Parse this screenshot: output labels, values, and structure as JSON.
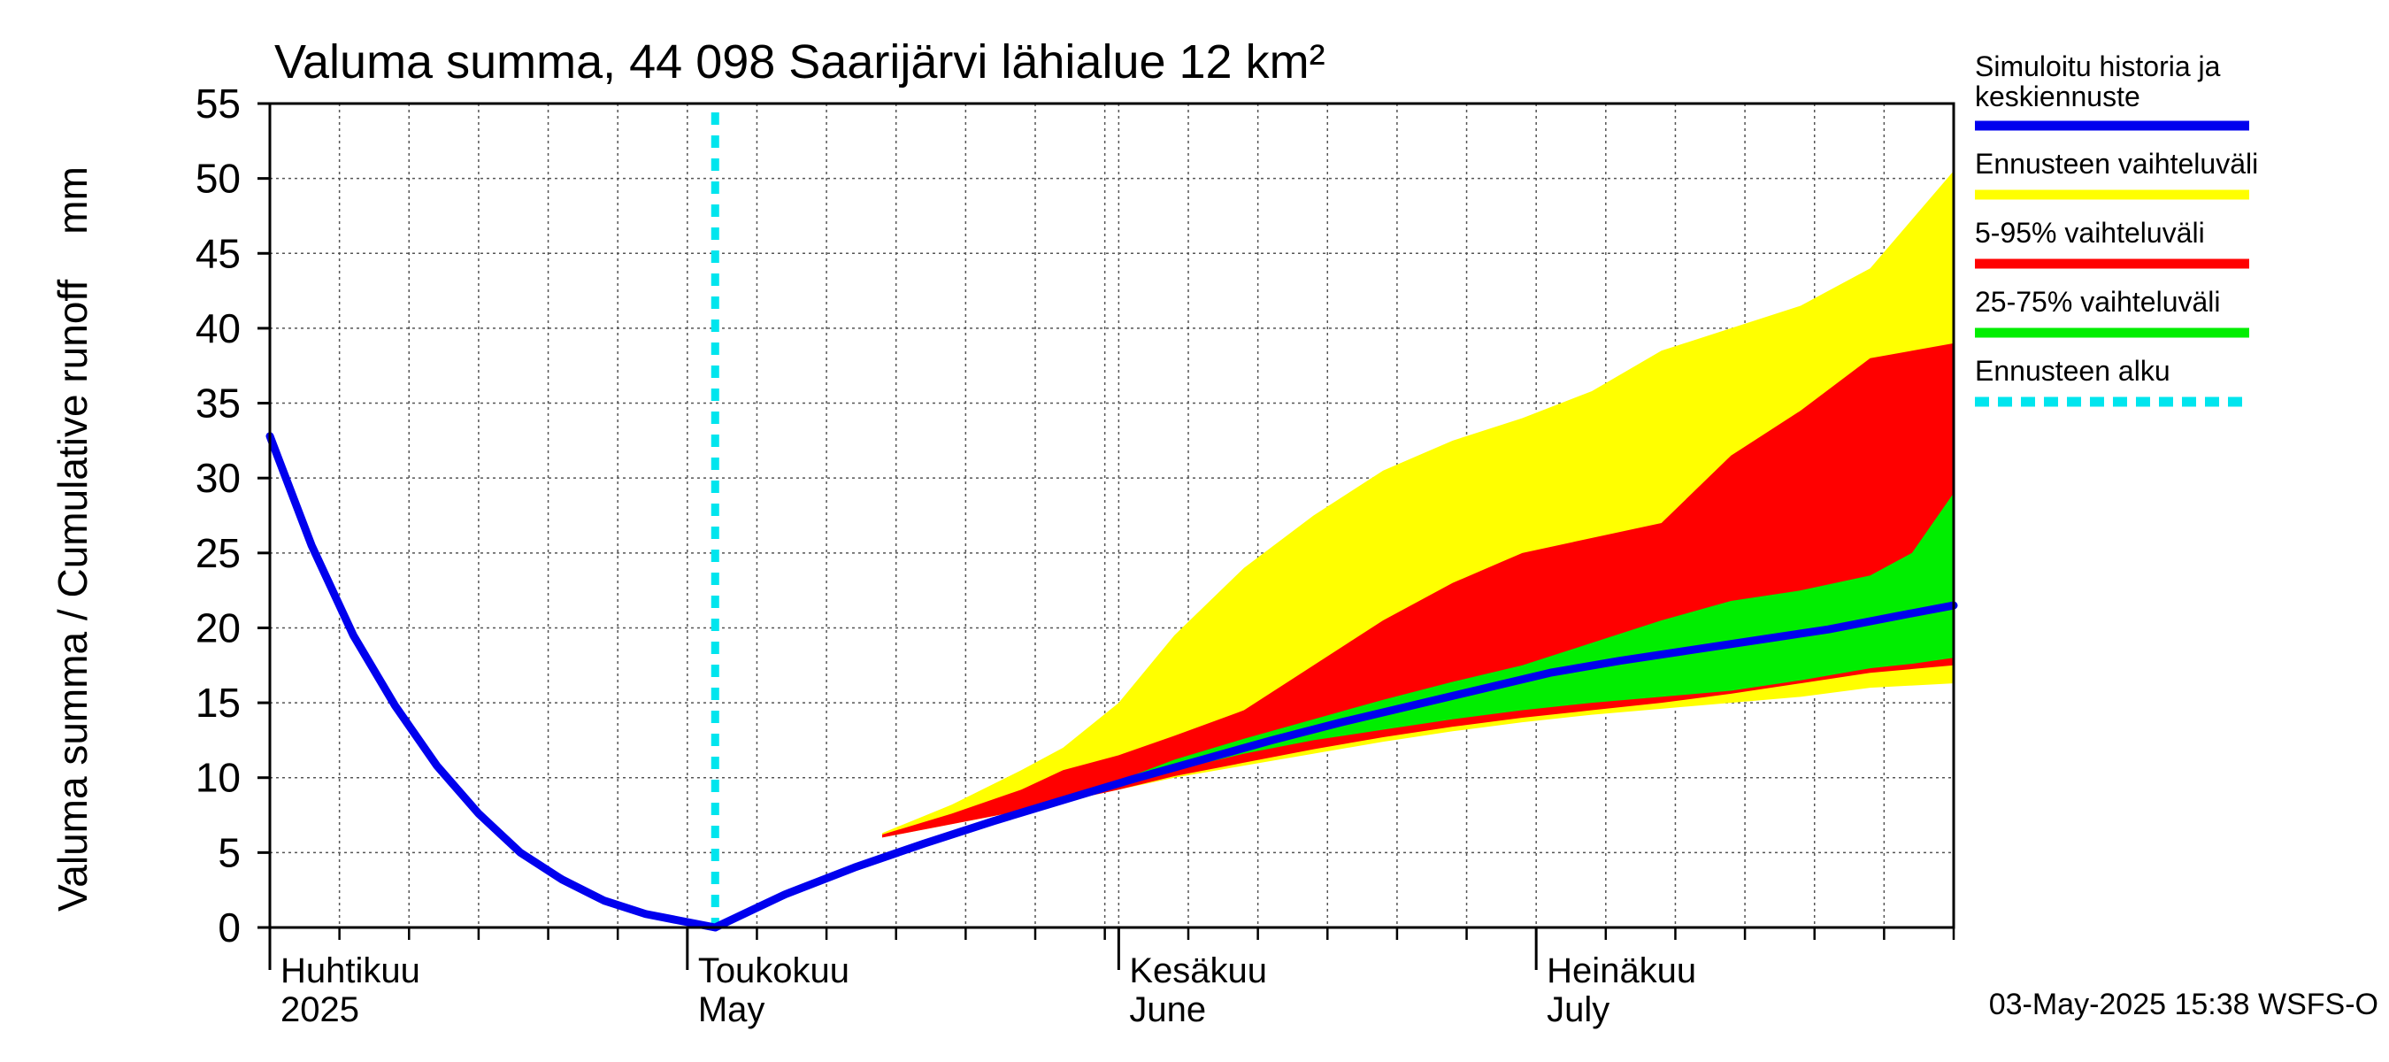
{
  "chart_data": {
    "type": "area",
    "title": "Valuma summa, 44 098 Saarijärvi lähialue 12 km²",
    "ylabel": "Valuma summa / Cumulative runoff    mm",
    "ylim": [
      0,
      55
    ],
    "yticks": [
      0,
      5,
      10,
      15,
      20,
      25,
      30,
      35,
      40,
      45,
      50,
      55
    ],
    "xlim": [
      "2025-04-01",
      "2025-07-31"
    ],
    "grid": true,
    "legend_position": "right",
    "month_labels": [
      {
        "fi": "Huhtikuu",
        "en": "2025",
        "date": "2025-04-01"
      },
      {
        "fi": "Toukokuu",
        "en": "May",
        "date": "2025-05-01"
      },
      {
        "fi": "Kesäkuu",
        "en": "June",
        "date": "2025-06-01"
      },
      {
        "fi": "Heinäkuu",
        "en": "July",
        "date": "2025-07-01"
      }
    ],
    "forecast_start": "2025-05-03",
    "legend": [
      {
        "label": "Simuloitu historia ja keskiennuste",
        "color": "#0000ee",
        "style": "solid"
      },
      {
        "label": "Ennusteen vaihteluväli",
        "color": "#ffff00",
        "style": "solid"
      },
      {
        "label": "5-95% vaihteluväli",
        "color": "#ff0000",
        "style": "solid"
      },
      {
        "label": "25-75% vaihteluväli",
        "color": "#00ee00",
        "style": "solid"
      },
      {
        "label": "Ennusteen alku",
        "color": "#00e5ee",
        "style": "dashed"
      }
    ],
    "series": [
      {
        "name": "Ennusteen vaihteluväli",
        "kind": "band",
        "color": "#ffff00",
        "x": [
          "2025-05-15",
          "2025-05-20",
          "2025-05-25",
          "2025-05-28",
          "2025-06-01",
          "2025-06-05",
          "2025-06-10",
          "2025-06-15",
          "2025-06-20",
          "2025-06-25",
          "2025-06-30",
          "2025-07-05",
          "2025-07-10",
          "2025-07-15",
          "2025-07-20",
          "2025-07-25",
          "2025-07-31"
        ],
        "low": [
          6.0,
          6.9,
          7.8,
          8.4,
          9.2,
          10.0,
          10.8,
          11.6,
          12.4,
          13.1,
          13.7,
          14.2,
          14.6,
          15.0,
          15.4,
          16.0,
          16.3
        ],
        "high": [
          6.3,
          8.2,
          10.5,
          12.0,
          15.0,
          19.5,
          24.0,
          27.5,
          30.5,
          32.5,
          34.0,
          35.8,
          38.5,
          40.0,
          41.5,
          44.0,
          50.5
        ]
      },
      {
        "name": "5-95% vaihteluväli",
        "kind": "band",
        "color": "#ff0000",
        "x": [
          "2025-05-15",
          "2025-05-20",
          "2025-05-25",
          "2025-05-28",
          "2025-06-01",
          "2025-06-05",
          "2025-06-10",
          "2025-06-15",
          "2025-06-20",
          "2025-06-25",
          "2025-06-30",
          "2025-07-05",
          "2025-07-10",
          "2025-07-15",
          "2025-07-20",
          "2025-07-25",
          "2025-07-31"
        ],
        "low": [
          6.0,
          6.9,
          7.8,
          8.4,
          9.2,
          10.1,
          11.0,
          11.9,
          12.7,
          13.4,
          14.0,
          14.5,
          15.0,
          15.6,
          16.3,
          17.0,
          17.5
        ],
        "high": [
          6.2,
          7.6,
          9.2,
          10.5,
          11.5,
          12.8,
          14.5,
          17.5,
          20.5,
          23.0,
          25.0,
          26.0,
          27.0,
          31.5,
          34.5,
          38.0,
          39.0
        ]
      },
      {
        "name": "25-75% vaihteluväli",
        "kind": "band",
        "color": "#00ee00",
        "x": [
          "2025-06-01",
          "2025-06-05",
          "2025-06-10",
          "2025-06-15",
          "2025-06-20",
          "2025-06-25",
          "2025-06-30",
          "2025-07-05",
          "2025-07-10",
          "2025-07-15",
          "2025-07-20",
          "2025-07-25",
          "2025-07-28",
          "2025-07-31"
        ],
        "low": [
          9.5,
          10.5,
          11.6,
          12.5,
          13.2,
          13.9,
          14.5,
          15.0,
          15.4,
          15.8,
          16.5,
          17.3,
          17.6,
          18.0
        ],
        "high": [
          9.8,
          11.2,
          12.6,
          13.9,
          15.2,
          16.4,
          17.5,
          19.0,
          20.5,
          21.8,
          22.5,
          23.5,
          25.0,
          29.0
        ]
      },
      {
        "name": "Simuloitu historia ja keskiennuste",
        "kind": "line",
        "color": "#0000ee",
        "x": [
          "2025-04-01",
          "2025-04-04",
          "2025-04-07",
          "2025-04-10",
          "2025-04-13",
          "2025-04-16",
          "2025-04-19",
          "2025-04-22",
          "2025-04-25",
          "2025-04-28",
          "2025-05-03",
          "2025-05-08",
          "2025-05-13",
          "2025-05-18",
          "2025-05-23",
          "2025-05-28",
          "2025-06-02",
          "2025-06-07",
          "2025-06-12",
          "2025-06-17",
          "2025-06-22",
          "2025-06-27",
          "2025-07-02",
          "2025-07-07",
          "2025-07-12",
          "2025-07-17",
          "2025-07-22",
          "2025-07-27",
          "2025-07-31"
        ],
        "y": [
          32.8,
          25.5,
          19.5,
          14.8,
          10.8,
          7.6,
          5.0,
          3.2,
          1.8,
          0.9,
          0.0,
          2.2,
          4.0,
          5.6,
          7.1,
          8.5,
          9.9,
          11.2,
          12.5,
          13.7,
          14.8,
          15.9,
          17.0,
          17.8,
          18.5,
          19.2,
          19.9,
          20.8,
          21.5
        ]
      }
    ]
  },
  "timestamp": "03-May-2025 15:38 WSFS-O"
}
